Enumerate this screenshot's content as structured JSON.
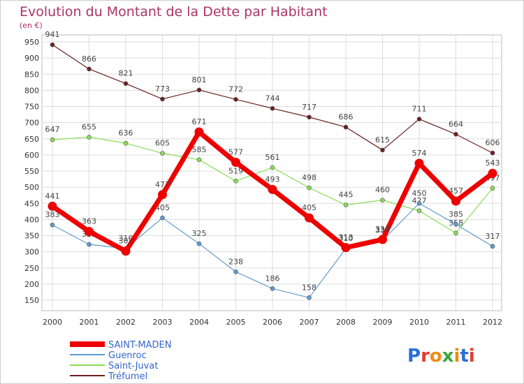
{
  "chart_data": {
    "type": "line",
    "title": "Evolution du Montant de la Dette par Habitant",
    "subtitle": "(en €)",
    "x": [
      "2000",
      "2001",
      "2002",
      "2003",
      "2004",
      "2005",
      "2006",
      "2007",
      "2008",
      "2009",
      "2010",
      "2011",
      "2012"
    ],
    "ylim": [
      150,
      950
    ],
    "yticks": [
      150,
      200,
      250,
      300,
      350,
      400,
      450,
      500,
      550,
      600,
      650,
      700,
      750,
      800,
      850,
      900,
      950
    ],
    "grid": true,
    "legend_position": "bottom-left",
    "series": [
      {
        "name": "Tréfumel",
        "color": "#6b1f1f",
        "values": [
          941,
          866,
          821,
          773,
          801,
          772,
          744,
          717,
          686,
          615,
          711,
          664,
          606
        ]
      },
      {
        "name": "Saint-Juvat",
        "color": "#88dd55",
        "values": [
          647,
          655,
          636,
          605,
          585,
          519,
          561,
          498,
          445,
          460,
          427,
          358,
          497
        ]
      },
      {
        "name": "Guenroc",
        "color": "#5f9bd0",
        "values": [
          383,
          323,
          310,
          405,
          325,
          238,
          186,
          158,
          310,
          335,
          450,
          385,
          317
        ]
      },
      {
        "name": "SAINT-MADEN",
        "color": "#ee0000",
        "values": [
          441,
          363,
          302,
          477,
          671,
          577,
          493,
          405,
          313,
          338,
          574,
          457,
          543
        ]
      }
    ],
    "legend_order": [
      "SAINT-MADEN",
      "Guenroc",
      "Saint-Juvat",
      "Tréfumel"
    ]
  },
  "logo": {
    "text": "Proxiti"
  }
}
